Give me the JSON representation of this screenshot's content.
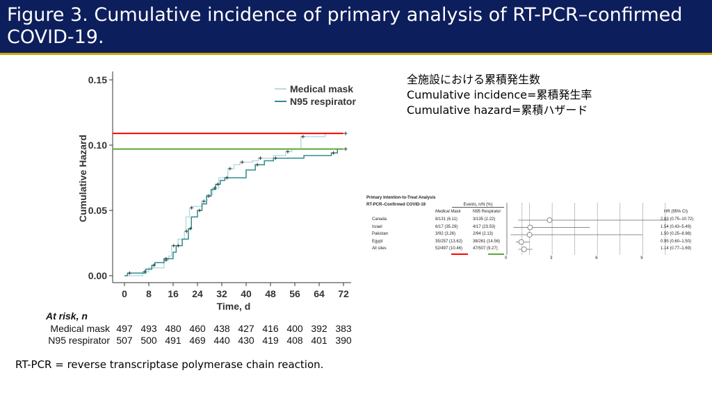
{
  "title": "Figure 3. Cumulative incidence of primary analysis of RT-PCR–confirmed COVID-19.",
  "notes": [
    "全施設における累積発生数",
    "Cumulative incidence=累積発生率",
    "Cumulative hazard=累積ハザード"
  ],
  "footnote": "RT-PCR = reverse transcriptase polymerase chain reaction.",
  "at_risk": {
    "label": "At risk, n",
    "rows": [
      {
        "name": "Medical mask",
        "values": [
          "497",
          "493",
          "480",
          "460",
          "438",
          "427",
          "416",
          "400",
          "392",
          "383"
        ]
      },
      {
        "name": "N95 respirator",
        "values": [
          "507",
          "500",
          "491",
          "469",
          "440",
          "430",
          "419",
          "408",
          "401",
          "390"
        ]
      }
    ]
  },
  "colors": {
    "header": "#0d1e5c",
    "medical": "#b9dbe0",
    "n95": "#2e8b8b",
    "red": "#ff0000",
    "green": "#5aa832"
  },
  "chart_data": {
    "type": "line",
    "ylabel": "Cumulative Hazard",
    "xlabel": "Time, d",
    "xlim": [
      0,
      72
    ],
    "ylim": [
      0,
      0.15
    ],
    "xticks": [
      "0",
      "8",
      "16",
      "24",
      "32",
      "40",
      "48",
      "56",
      "64",
      "72"
    ],
    "yticks": [
      "0.00",
      "0.05",
      "0.10",
      "0.15"
    ],
    "legend": "top-right",
    "reference_lines": [
      {
        "y": 0.109,
        "color": "red"
      },
      {
        "y": 0.097,
        "color": "green"
      }
    ],
    "series": [
      {
        "name": "Medical mask",
        "x": [
          0,
          6,
          8,
          13,
          14.5,
          15.5,
          17.6,
          19.7,
          20.2,
          21.4,
          22,
          25.4,
          27,
          29,
          31,
          34,
          36,
          38,
          42,
          44,
          49,
          53,
          55,
          58,
          66,
          72
        ],
        "y": [
          0,
          0.003,
          0.006,
          0.012,
          0.015,
          0.023,
          0.028,
          0.034,
          0.045,
          0.052,
          0.053,
          0.057,
          0.062,
          0.067,
          0.075,
          0.082,
          0.085,
          0.087,
          0.088,
          0.09,
          0.092,
          0.095,
          0.097,
          0.1065,
          0.109,
          0.109
        ]
      },
      {
        "name": "N95 respirator",
        "x": [
          0,
          1,
          7,
          9,
          10,
          13,
          16,
          17,
          19,
          21,
          22,
          24,
          25.5,
          27,
          28.5,
          30,
          31.5,
          33,
          40,
          43,
          46,
          49,
          59,
          68,
          70,
          72
        ],
        "y": [
          0,
          0.002,
          0.005,
          0.008,
          0.01,
          0.013,
          0.018,
          0.023,
          0.028,
          0.036,
          0.045,
          0.05,
          0.055,
          0.061,
          0.066,
          0.07,
          0.073,
          0.075,
          0.081,
          0.085,
          0.088,
          0.09,
          0.092,
          0.094,
          0.097,
          0.097
        ]
      }
    ]
  },
  "forest": {
    "heading1": "Primary Intention-to-Treat Analysis",
    "heading2": "RT-PCR–Confirmed COVID-19",
    "events_label": "Events, n/N (%)",
    "col1": "Medical Mask",
    "col2": "N95 Respirator",
    "hr_label": "HR (95% CI)",
    "rows": [
      {
        "site": "Canada",
        "mm": "8/131 (6.11)",
        "n95": "3/135 (2.22)",
        "hr": "2.83 (0.75–10.72)",
        "est": 2.83,
        "lo": 0.75,
        "hi": 10.72
      },
      {
        "site": "Israel",
        "mm": "6/17 (35.29)",
        "n95": "4/17 (23.53)",
        "hr": "1.54 (0.43–5.49)",
        "est": 1.54,
        "lo": 0.43,
        "hi": 5.49
      },
      {
        "site": "Pakistan",
        "mm": "3/92 (3.26)",
        "n95": "2/94 (2.13)",
        "hr": "1.50 (0.25–8.98)",
        "est": 1.5,
        "lo": 0.25,
        "hi": 8.98
      },
      {
        "site": "Egypt",
        "mm": "35/257 (13.62)",
        "n95": "38/261 (14.56)",
        "hr": "0.95 (0.60–1.50)",
        "est": 0.95,
        "lo": 0.6,
        "hi": 1.5
      },
      {
        "site": "All sites",
        "mm": "52/497 (10.46)",
        "n95": "47/507 (9.27)",
        "hr": "1.14 (0.77–1.69)",
        "est": 1.14,
        "lo": 0.77,
        "hi": 1.69
      }
    ],
    "axis": [
      "0",
      "3",
      "6",
      "9"
    ]
  }
}
